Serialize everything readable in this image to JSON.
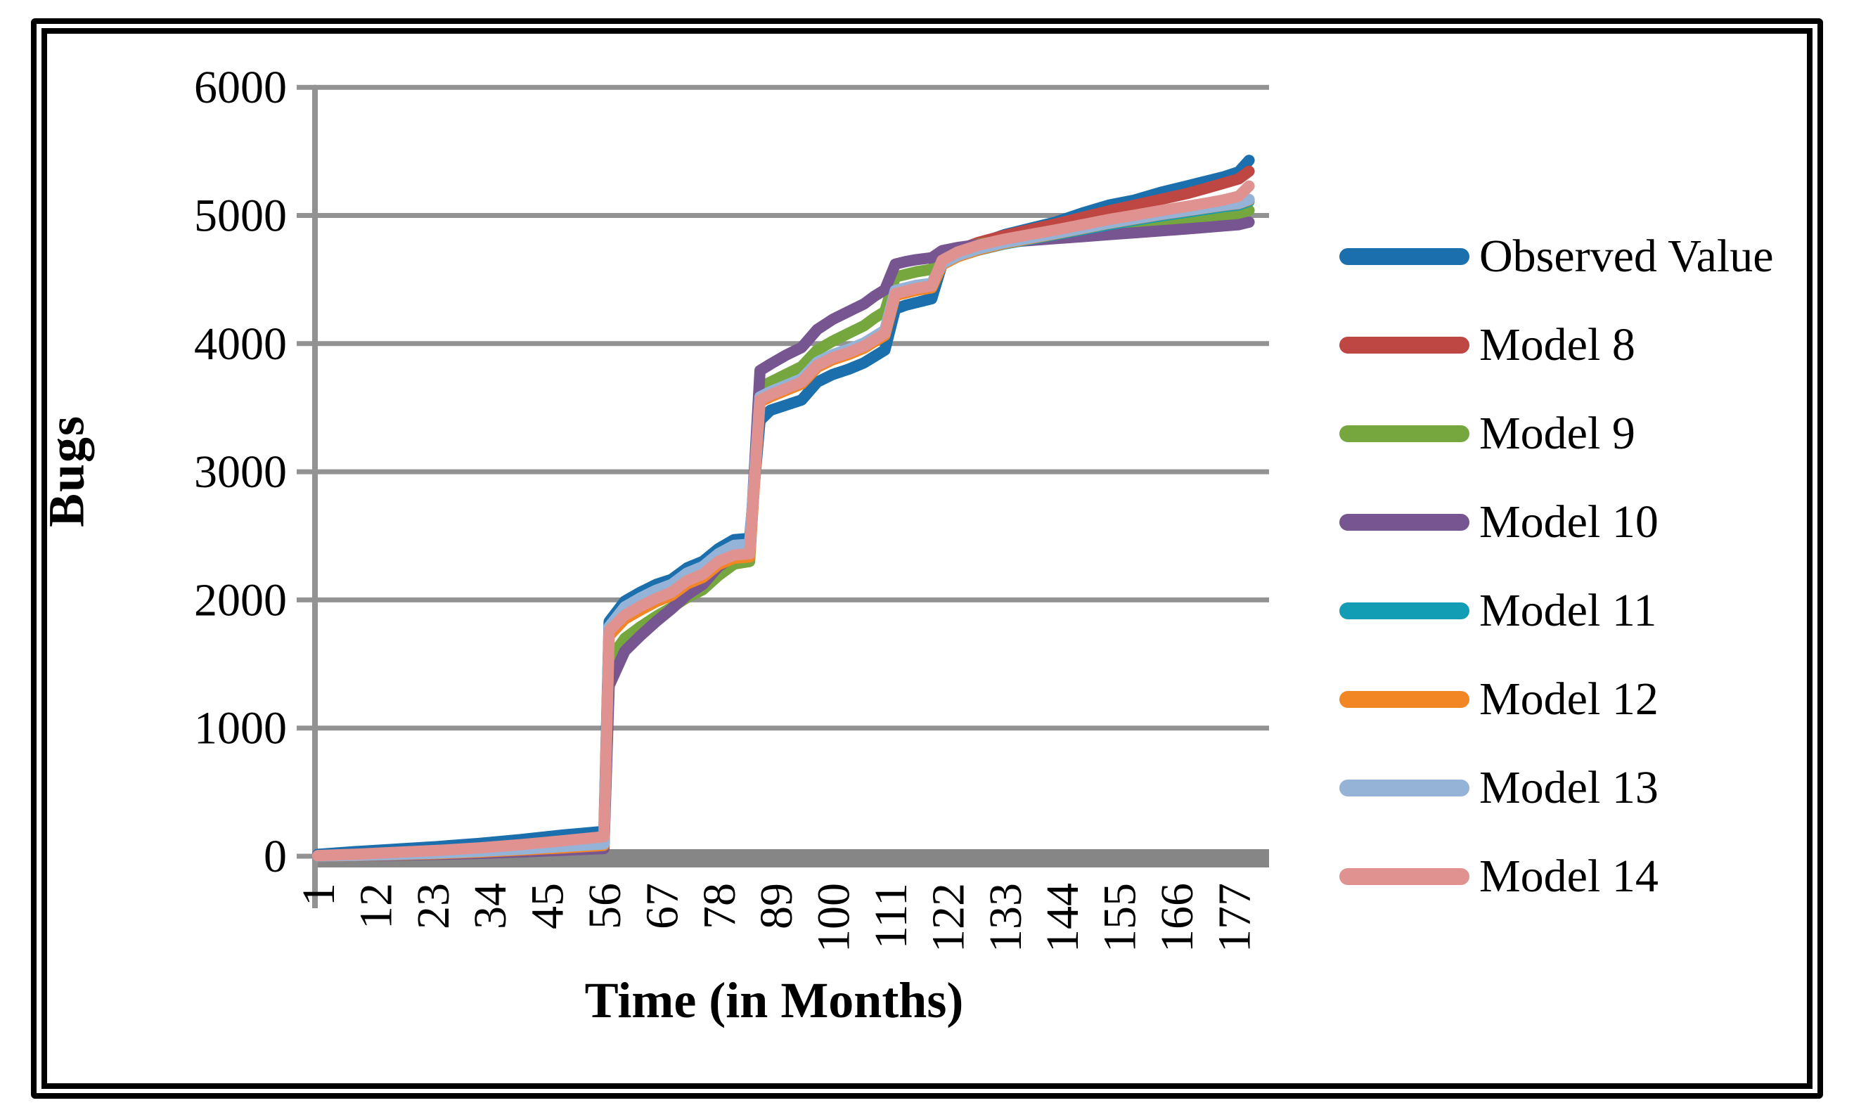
{
  "figure": {
    "kind": "line chart figure",
    "y_axis_title": "Bugs",
    "x_axis_title": "Time (in Months)"
  },
  "colors": {
    "grid": "#929292",
    "zero_axis_bar": "#868686",
    "axis_line": "#929292",
    "text": "#000000",
    "background": "#ffffff",
    "frame_border": "#000000"
  },
  "chart_data": {
    "type": "line",
    "title": "",
    "xlabel": "Time (in Months)",
    "ylabel": "Bugs",
    "ylim": [
      0,
      6000
    ],
    "xlim": [
      1,
      181
    ],
    "grid": "horizontal",
    "legend_position": "right",
    "y_ticks": [
      0,
      1000,
      2000,
      3000,
      4000,
      5000,
      6000
    ],
    "x_ticks": [
      1,
      12,
      23,
      34,
      45,
      56,
      67,
      78,
      89,
      100,
      111,
      122,
      133,
      144,
      155,
      166,
      177
    ],
    "x": [
      1,
      8,
      16,
      24,
      32,
      40,
      48,
      55,
      56,
      57,
      60,
      63,
      66,
      69,
      72,
      75,
      78,
      81,
      84,
      86,
      88,
      91,
      94,
      97,
      100,
      103,
      106,
      108,
      110,
      112,
      114,
      116,
      119,
      121,
      124,
      128,
      133,
      138,
      143,
      148,
      153,
      158,
      163,
      168,
      172,
      175,
      178,
      180
    ],
    "series": [
      {
        "name": "Observed Value",
        "color": "#1B6FAC",
        "values": [
          15,
          35,
          55,
          75,
          100,
          130,
          165,
          190,
          195,
          1830,
          1990,
          2060,
          2120,
          2160,
          2250,
          2300,
          2400,
          2470,
          2480,
          3400,
          3480,
          3520,
          3560,
          3700,
          3760,
          3800,
          3850,
          3900,
          3950,
          4270,
          4300,
          4320,
          4350,
          4620,
          4700,
          4780,
          4850,
          4900,
          4950,
          5020,
          5080,
          5120,
          5180,
          5230,
          5270,
          5300,
          5340,
          5430
        ]
      },
      {
        "name": "Model 8",
        "color": "#BE4744",
        "values": [
          3,
          8,
          18,
          30,
          45,
          60,
          80,
          100,
          105,
          1750,
          1890,
          1960,
          2020,
          2070,
          2160,
          2210,
          2310,
          2360,
          2370,
          3570,
          3610,
          3660,
          3710,
          3840,
          3900,
          3940,
          3990,
          4040,
          4090,
          4400,
          4420,
          4440,
          4460,
          4660,
          4730,
          4790,
          4845,
          4890,
          4935,
          4985,
          5035,
          5080,
          5125,
          5170,
          5215,
          5250,
          5285,
          5345
        ]
      },
      {
        "name": "Model 9",
        "color": "#76A73E",
        "values": [
          2,
          5,
          10,
          18,
          28,
          42,
          58,
          72,
          75,
          1530,
          1700,
          1790,
          1870,
          1940,
          2020,
          2080,
          2190,
          2280,
          2300,
          3660,
          3700,
          3760,
          3820,
          3950,
          4020,
          4080,
          4140,
          4200,
          4250,
          4520,
          4540,
          4560,
          4580,
          4700,
          4740,
          4775,
          4805,
          4830,
          4855,
          4880,
          4905,
          4930,
          4955,
          4975,
          4990,
          5000,
          5015,
          5040
        ]
      },
      {
        "name": "Model 10",
        "color": "#765591",
        "values": [
          1,
          4,
          8,
          14,
          22,
          33,
          46,
          58,
          60,
          1330,
          1600,
          1720,
          1830,
          1930,
          2040,
          2120,
          2260,
          2340,
          2360,
          3790,
          3840,
          3910,
          3970,
          4110,
          4190,
          4250,
          4310,
          4370,
          4420,
          4620,
          4640,
          4655,
          4670,
          4725,
          4750,
          4772,
          4790,
          4805,
          4820,
          4835,
          4850,
          4865,
          4880,
          4895,
          4908,
          4918,
          4928,
          4948
        ]
      },
      {
        "name": "Model 11",
        "color": "#129DB4",
        "values": [
          2,
          6,
          13,
          22,
          35,
          50,
          68,
          85,
          88,
          1770,
          1925,
          1995,
          2055,
          2100,
          2190,
          2240,
          2340,
          2405,
          2415,
          3560,
          3600,
          3650,
          3700,
          3830,
          3890,
          3930,
          3980,
          4030,
          4080,
          4390,
          4410,
          4430,
          4450,
          4620,
          4680,
          4730,
          4778,
          4815,
          4852,
          4890,
          4928,
          4962,
          4996,
          5026,
          5050,
          5068,
          5082,
          5110
        ]
      },
      {
        "name": "Model 12",
        "color": "#F28524",
        "values": [
          2,
          5,
          12,
          20,
          32,
          48,
          65,
          82,
          85,
          1720,
          1850,
          1920,
          1985,
          2035,
          2125,
          2175,
          2275,
          2325,
          2335,
          3545,
          3585,
          3635,
          3685,
          3815,
          3875,
          3915,
          3965,
          4015,
          4065,
          4375,
          4395,
          4415,
          4435,
          4615,
          4678,
          4732,
          4782,
          4820,
          4858,
          4898,
          4938,
          4972,
          5006,
          5036,
          5060,
          5078,
          5092,
          5120
        ]
      },
      {
        "name": "Model 13",
        "color": "#95B2D7",
        "values": [
          2,
          6,
          14,
          24,
          38,
          55,
          75,
          93,
          96,
          1790,
          1945,
          2015,
          2075,
          2120,
          2210,
          2260,
          2360,
          2425,
          2435,
          3585,
          3625,
          3675,
          3725,
          3855,
          3915,
          3955,
          4005,
          4055,
          4105,
          4415,
          4435,
          4455,
          4470,
          4625,
          4688,
          4740,
          4788,
          4825,
          4862,
          4900,
          4940,
          4975,
          5008,
          5038,
          5062,
          5080,
          5095,
          5125
        ]
      },
      {
        "name": "Model 14",
        "color": "#E09290",
        "values": [
          5,
          15,
          30,
          45,
          65,
          90,
          120,
          148,
          152,
          1760,
          1880,
          1950,
          2010,
          2060,
          2150,
          2200,
          2300,
          2350,
          2360,
          3560,
          3600,
          3650,
          3700,
          3830,
          3890,
          3930,
          3980,
          4030,
          4080,
          4390,
          4410,
          4430,
          4450,
          4650,
          4715,
          4768,
          4815,
          4852,
          4888,
          4928,
          4968,
          5002,
          5038,
          5070,
          5098,
          5120,
          5150,
          5230
        ]
      }
    ]
  }
}
